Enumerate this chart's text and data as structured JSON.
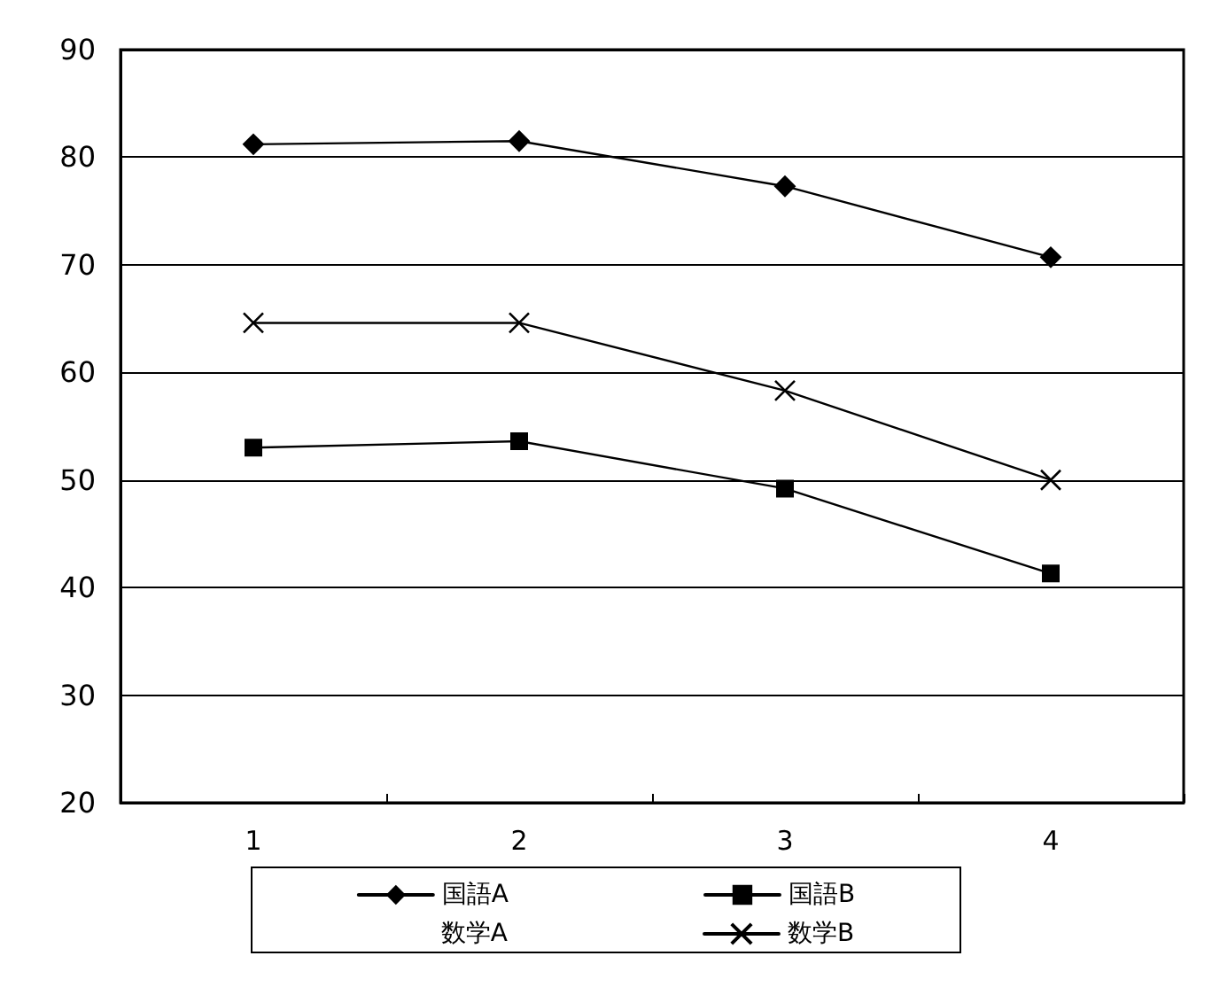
{
  "chart_data": {
    "type": "line",
    "categories": [
      "1",
      "2",
      "3",
      "4"
    ],
    "series": [
      {
        "name": "国語A",
        "color": "#000000",
        "marker": "diamond",
        "values": [
          81.2,
          81.5,
          77.3,
          70.7
        ]
      },
      {
        "name": "国語B",
        "color": "#000000",
        "marker": "square",
        "values": [
          53.0,
          53.6,
          49.2,
          41.3
        ]
      },
      {
        "name": "数学A",
        "color": "#000000",
        "marker": "none",
        "values": [
          null,
          null,
          null,
          null
        ]
      },
      {
        "name": "数学B",
        "color": "#000000",
        "marker": "cross",
        "values": [
          64.6,
          64.6,
          58.3,
          50.0
        ]
      }
    ],
    "ylim": [
      20,
      90
    ],
    "yticks": [
      20,
      30,
      40,
      50,
      60,
      70,
      80,
      90
    ],
    "grid": "y",
    "legend": "bottom",
    "line_style": "solid"
  }
}
